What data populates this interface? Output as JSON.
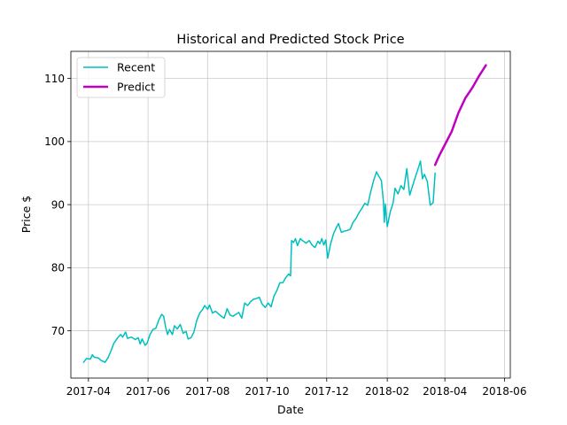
{
  "chart_data": {
    "type": "line",
    "title": "Historical and Predicted Stock Price",
    "xlabel": "Date",
    "ylabel": "Price $",
    "xlim": [
      "2017-03-14",
      "2018-06-07"
    ],
    "ylim": [
      62.5,
      114.3
    ],
    "x_ticks": [
      "2017-04",
      "2017-06",
      "2017-08",
      "2017-10",
      "2017-12",
      "2018-02",
      "2018-04",
      "2018-06"
    ],
    "y_ticks": [
      70,
      80,
      90,
      100,
      110
    ],
    "grid": true,
    "legend_position": "top-left",
    "series": [
      {
        "name": "Recent",
        "color": "#00bfbf",
        "line_width": 1.5,
        "points": [
          [
            "2017-03-27",
            65.0
          ],
          [
            "2017-03-30",
            65.6
          ],
          [
            "2017-04-03",
            65.5
          ],
          [
            "2017-04-05",
            66.2
          ],
          [
            "2017-04-07",
            65.8
          ],
          [
            "2017-04-11",
            65.7
          ],
          [
            "2017-04-14",
            65.3
          ],
          [
            "2017-04-18",
            65.0
          ],
          [
            "2017-04-21",
            65.7
          ],
          [
            "2017-04-24",
            66.8
          ],
          [
            "2017-04-27",
            68.0
          ],
          [
            "2017-05-01",
            68.9
          ],
          [
            "2017-05-04",
            69.4
          ],
          [
            "2017-05-06",
            69.0
          ],
          [
            "2017-05-09",
            69.8
          ],
          [
            "2017-05-11",
            68.8
          ],
          [
            "2017-05-15",
            69.0
          ],
          [
            "2017-05-19",
            68.6
          ],
          [
            "2017-05-22",
            68.9
          ],
          [
            "2017-05-24",
            67.9
          ],
          [
            "2017-05-26",
            68.7
          ],
          [
            "2017-05-29",
            67.7
          ],
          [
            "2017-05-31",
            68.0
          ],
          [
            "2017-06-03",
            69.4
          ],
          [
            "2017-06-06",
            70.2
          ],
          [
            "2017-06-09",
            70.4
          ],
          [
            "2017-06-12",
            71.7
          ],
          [
            "2017-06-15",
            72.6
          ],
          [
            "2017-06-17",
            72.3
          ],
          [
            "2017-06-19",
            70.6
          ],
          [
            "2017-06-21",
            69.4
          ],
          [
            "2017-06-23",
            70.2
          ],
          [
            "2017-06-26",
            69.4
          ],
          [
            "2017-06-28",
            70.8
          ],
          [
            "2017-07-01",
            70.3
          ],
          [
            "2017-07-04",
            71.0
          ],
          [
            "2017-07-07",
            69.6
          ],
          [
            "2017-07-10",
            69.9
          ],
          [
            "2017-07-12",
            68.7
          ],
          [
            "2017-07-15",
            68.9
          ],
          [
            "2017-07-18",
            69.8
          ],
          [
            "2017-07-21",
            71.7
          ],
          [
            "2017-07-24",
            72.8
          ],
          [
            "2017-07-27",
            73.4
          ],
          [
            "2017-07-29",
            74.0
          ],
          [
            "2017-08-01",
            73.4
          ],
          [
            "2017-08-03",
            74.1
          ],
          [
            "2017-08-06",
            72.8
          ],
          [
            "2017-08-09",
            73.1
          ],
          [
            "2017-08-12",
            72.7
          ],
          [
            "2017-08-15",
            72.3
          ],
          [
            "2017-08-18",
            72.0
          ],
          [
            "2017-08-21",
            73.5
          ],
          [
            "2017-08-24",
            72.5
          ],
          [
            "2017-08-27",
            72.3
          ],
          [
            "2017-08-30",
            72.6
          ],
          [
            "2017-09-02",
            72.9
          ],
          [
            "2017-09-05",
            72.0
          ],
          [
            "2017-09-08",
            74.4
          ],
          [
            "2017-09-11",
            74.0
          ],
          [
            "2017-09-14",
            74.6
          ],
          [
            "2017-09-17",
            75.0
          ],
          [
            "2017-09-20",
            75.1
          ],
          [
            "2017-09-23",
            75.3
          ],
          [
            "2017-09-26",
            74.2
          ],
          [
            "2017-09-29",
            73.7
          ],
          [
            "2017-10-02",
            74.4
          ],
          [
            "2017-10-05",
            73.8
          ],
          [
            "2017-10-08",
            75.5
          ],
          [
            "2017-10-11",
            76.4
          ],
          [
            "2017-10-14",
            77.6
          ],
          [
            "2017-10-17",
            77.6
          ],
          [
            "2017-10-20",
            78.4
          ],
          [
            "2017-10-23",
            79.0
          ],
          [
            "2017-10-25",
            78.7
          ],
          [
            "2017-10-26",
            84.3
          ],
          [
            "2017-10-28",
            84.0
          ],
          [
            "2017-10-30",
            84.6
          ],
          [
            "2017-11-01",
            83.5
          ],
          [
            "2017-11-04",
            84.6
          ],
          [
            "2017-11-07",
            84.2
          ],
          [
            "2017-11-10",
            83.9
          ],
          [
            "2017-11-13",
            84.3
          ],
          [
            "2017-11-16",
            83.6
          ],
          [
            "2017-11-19",
            83.2
          ],
          [
            "2017-11-22",
            84.2
          ],
          [
            "2017-11-24",
            83.8
          ],
          [
            "2017-11-26",
            84.6
          ],
          [
            "2017-11-28",
            83.6
          ],
          [
            "2017-11-30",
            84.4
          ],
          [
            "2017-12-02",
            81.5
          ],
          [
            "2017-12-05",
            83.8
          ],
          [
            "2017-12-08",
            85.4
          ],
          [
            "2017-12-11",
            86.4
          ],
          [
            "2017-12-13",
            87.0
          ],
          [
            "2017-12-16",
            85.6
          ],
          [
            "2017-12-19",
            85.8
          ],
          [
            "2017-12-22",
            85.9
          ],
          [
            "2017-12-25",
            86.1
          ],
          [
            "2017-12-28",
            87.2
          ],
          [
            "2017-12-31",
            87.8
          ],
          [
            "2018-01-03",
            88.7
          ],
          [
            "2018-01-06",
            89.4
          ],
          [
            "2018-01-09",
            90.2
          ],
          [
            "2018-01-12",
            89.9
          ],
          [
            "2018-01-15",
            92.0
          ],
          [
            "2018-01-18",
            93.8
          ],
          [
            "2018-01-21",
            95.2
          ],
          [
            "2018-01-23",
            94.6
          ],
          [
            "2018-01-26",
            93.8
          ],
          [
            "2018-01-28",
            90.6
          ],
          [
            "2018-01-29",
            87.2
          ],
          [
            "2018-01-30",
            90.1
          ],
          [
            "2018-02-01",
            86.5
          ],
          [
            "2018-02-04",
            88.8
          ],
          [
            "2018-02-07",
            90.3
          ],
          [
            "2018-02-09",
            92.6
          ],
          [
            "2018-02-12",
            91.7
          ],
          [
            "2018-02-15",
            93.0
          ],
          [
            "2018-02-18",
            92.4
          ],
          [
            "2018-02-21",
            95.7
          ],
          [
            "2018-02-24",
            91.5
          ],
          [
            "2018-02-27",
            93.0
          ],
          [
            "2018-03-02",
            94.5
          ],
          [
            "2018-03-05",
            95.9
          ],
          [
            "2018-03-07",
            96.9
          ],
          [
            "2018-03-09",
            94.1
          ],
          [
            "2018-03-11",
            94.8
          ],
          [
            "2018-03-14",
            93.7
          ],
          [
            "2018-03-17",
            89.9
          ],
          [
            "2018-03-20",
            90.3
          ],
          [
            "2018-03-22",
            95.0
          ]
        ]
      },
      {
        "name": "Predict",
        "color": "#bf00bf",
        "line_width": 2.5,
        "points": [
          [
            "2018-03-22",
            96.3
          ],
          [
            "2018-03-26",
            97.7
          ],
          [
            "2018-04-01",
            99.5
          ],
          [
            "2018-04-08",
            101.6
          ],
          [
            "2018-04-15",
            104.6
          ],
          [
            "2018-04-22",
            106.9
          ],
          [
            "2018-04-29",
            108.5
          ],
          [
            "2018-05-06",
            110.4
          ],
          [
            "2018-05-13",
            112.1
          ]
        ]
      }
    ]
  }
}
